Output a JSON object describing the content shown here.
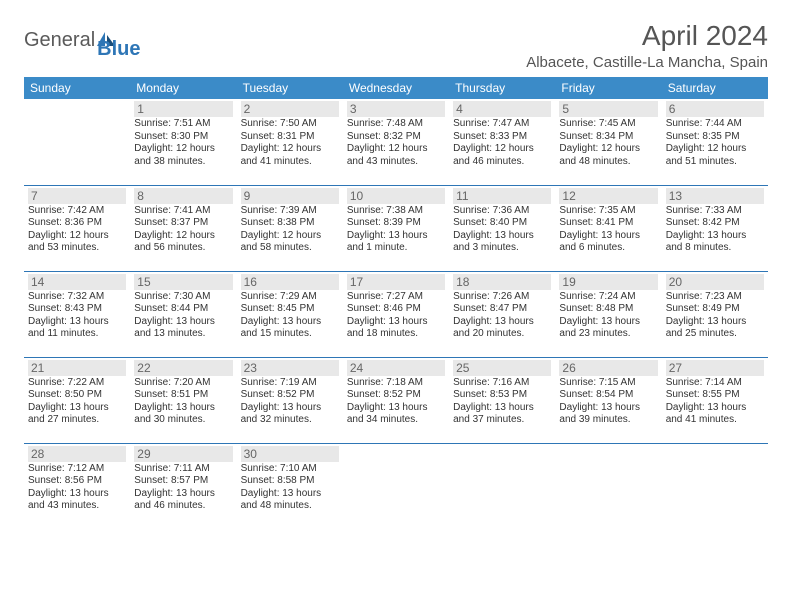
{
  "brand": {
    "part1": "General",
    "part2": "Blue"
  },
  "title": "April 2024",
  "location": "Albacete, Castille-La Mancha, Spain",
  "colors": {
    "header_bg": "#3b8bc8",
    "header_text": "#ffffff",
    "row_border": "#2e76b6",
    "daynum_bg": "#e8e8e8",
    "daynum_text": "#666666",
    "body_text": "#333333",
    "title_text": "#555555"
  },
  "fonts": {
    "title_size": 28,
    "location_size": 15,
    "header_size": 12,
    "daynum_size": 12,
    "info_size": 10
  },
  "dayHeaders": [
    "Sunday",
    "Monday",
    "Tuesday",
    "Wednesday",
    "Thursday",
    "Friday",
    "Saturday"
  ],
  "weeks": [
    [
      null,
      {
        "n": "1",
        "sr": "Sunrise: 7:51 AM",
        "ss": "Sunset: 8:30 PM",
        "d1": "Daylight: 12 hours",
        "d2": "and 38 minutes."
      },
      {
        "n": "2",
        "sr": "Sunrise: 7:50 AM",
        "ss": "Sunset: 8:31 PM",
        "d1": "Daylight: 12 hours",
        "d2": "and 41 minutes."
      },
      {
        "n": "3",
        "sr": "Sunrise: 7:48 AM",
        "ss": "Sunset: 8:32 PM",
        "d1": "Daylight: 12 hours",
        "d2": "and 43 minutes."
      },
      {
        "n": "4",
        "sr": "Sunrise: 7:47 AM",
        "ss": "Sunset: 8:33 PM",
        "d1": "Daylight: 12 hours",
        "d2": "and 46 minutes."
      },
      {
        "n": "5",
        "sr": "Sunrise: 7:45 AM",
        "ss": "Sunset: 8:34 PM",
        "d1": "Daylight: 12 hours",
        "d2": "and 48 minutes."
      },
      {
        "n": "6",
        "sr": "Sunrise: 7:44 AM",
        "ss": "Sunset: 8:35 PM",
        "d1": "Daylight: 12 hours",
        "d2": "and 51 minutes."
      }
    ],
    [
      {
        "n": "7",
        "sr": "Sunrise: 7:42 AM",
        "ss": "Sunset: 8:36 PM",
        "d1": "Daylight: 12 hours",
        "d2": "and 53 minutes."
      },
      {
        "n": "8",
        "sr": "Sunrise: 7:41 AM",
        "ss": "Sunset: 8:37 PM",
        "d1": "Daylight: 12 hours",
        "d2": "and 56 minutes."
      },
      {
        "n": "9",
        "sr": "Sunrise: 7:39 AM",
        "ss": "Sunset: 8:38 PM",
        "d1": "Daylight: 12 hours",
        "d2": "and 58 minutes."
      },
      {
        "n": "10",
        "sr": "Sunrise: 7:38 AM",
        "ss": "Sunset: 8:39 PM",
        "d1": "Daylight: 13 hours",
        "d2": "and 1 minute."
      },
      {
        "n": "11",
        "sr": "Sunrise: 7:36 AM",
        "ss": "Sunset: 8:40 PM",
        "d1": "Daylight: 13 hours",
        "d2": "and 3 minutes."
      },
      {
        "n": "12",
        "sr": "Sunrise: 7:35 AM",
        "ss": "Sunset: 8:41 PM",
        "d1": "Daylight: 13 hours",
        "d2": "and 6 minutes."
      },
      {
        "n": "13",
        "sr": "Sunrise: 7:33 AM",
        "ss": "Sunset: 8:42 PM",
        "d1": "Daylight: 13 hours",
        "d2": "and 8 minutes."
      }
    ],
    [
      {
        "n": "14",
        "sr": "Sunrise: 7:32 AM",
        "ss": "Sunset: 8:43 PM",
        "d1": "Daylight: 13 hours",
        "d2": "and 11 minutes."
      },
      {
        "n": "15",
        "sr": "Sunrise: 7:30 AM",
        "ss": "Sunset: 8:44 PM",
        "d1": "Daylight: 13 hours",
        "d2": "and 13 minutes."
      },
      {
        "n": "16",
        "sr": "Sunrise: 7:29 AM",
        "ss": "Sunset: 8:45 PM",
        "d1": "Daylight: 13 hours",
        "d2": "and 15 minutes."
      },
      {
        "n": "17",
        "sr": "Sunrise: 7:27 AM",
        "ss": "Sunset: 8:46 PM",
        "d1": "Daylight: 13 hours",
        "d2": "and 18 minutes."
      },
      {
        "n": "18",
        "sr": "Sunrise: 7:26 AM",
        "ss": "Sunset: 8:47 PM",
        "d1": "Daylight: 13 hours",
        "d2": "and 20 minutes."
      },
      {
        "n": "19",
        "sr": "Sunrise: 7:24 AM",
        "ss": "Sunset: 8:48 PM",
        "d1": "Daylight: 13 hours",
        "d2": "and 23 minutes."
      },
      {
        "n": "20",
        "sr": "Sunrise: 7:23 AM",
        "ss": "Sunset: 8:49 PM",
        "d1": "Daylight: 13 hours",
        "d2": "and 25 minutes."
      }
    ],
    [
      {
        "n": "21",
        "sr": "Sunrise: 7:22 AM",
        "ss": "Sunset: 8:50 PM",
        "d1": "Daylight: 13 hours",
        "d2": "and 27 minutes."
      },
      {
        "n": "22",
        "sr": "Sunrise: 7:20 AM",
        "ss": "Sunset: 8:51 PM",
        "d1": "Daylight: 13 hours",
        "d2": "and 30 minutes."
      },
      {
        "n": "23",
        "sr": "Sunrise: 7:19 AM",
        "ss": "Sunset: 8:52 PM",
        "d1": "Daylight: 13 hours",
        "d2": "and 32 minutes."
      },
      {
        "n": "24",
        "sr": "Sunrise: 7:18 AM",
        "ss": "Sunset: 8:52 PM",
        "d1": "Daylight: 13 hours",
        "d2": "and 34 minutes."
      },
      {
        "n": "25",
        "sr": "Sunrise: 7:16 AM",
        "ss": "Sunset: 8:53 PM",
        "d1": "Daylight: 13 hours",
        "d2": "and 37 minutes."
      },
      {
        "n": "26",
        "sr": "Sunrise: 7:15 AM",
        "ss": "Sunset: 8:54 PM",
        "d1": "Daylight: 13 hours",
        "d2": "and 39 minutes."
      },
      {
        "n": "27",
        "sr": "Sunrise: 7:14 AM",
        "ss": "Sunset: 8:55 PM",
        "d1": "Daylight: 13 hours",
        "d2": "and 41 minutes."
      }
    ],
    [
      {
        "n": "28",
        "sr": "Sunrise: 7:12 AM",
        "ss": "Sunset: 8:56 PM",
        "d1": "Daylight: 13 hours",
        "d2": "and 43 minutes."
      },
      {
        "n": "29",
        "sr": "Sunrise: 7:11 AM",
        "ss": "Sunset: 8:57 PM",
        "d1": "Daylight: 13 hours",
        "d2": "and 46 minutes."
      },
      {
        "n": "30",
        "sr": "Sunrise: 7:10 AM",
        "ss": "Sunset: 8:58 PM",
        "d1": "Daylight: 13 hours",
        "d2": "and 48 minutes."
      },
      null,
      null,
      null,
      null
    ]
  ]
}
